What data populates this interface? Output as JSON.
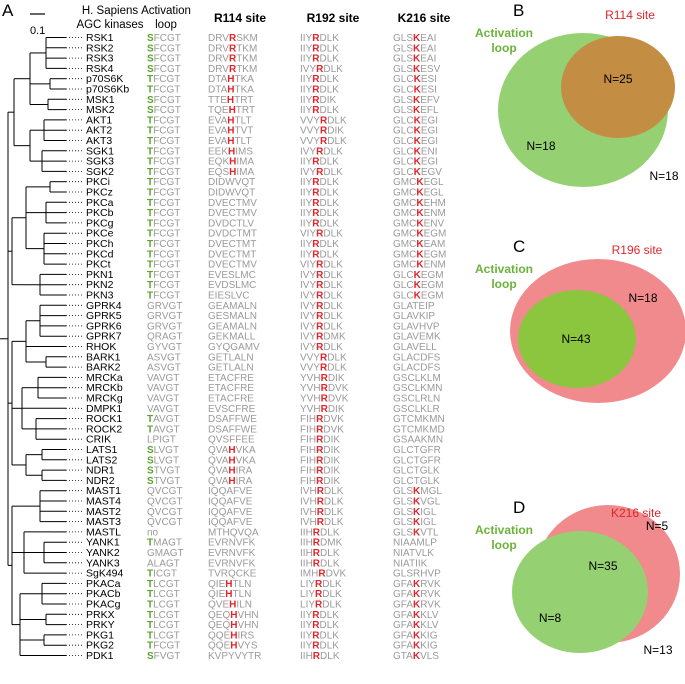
{
  "panel_a": {
    "label": "A",
    "scale_bar_label": "0.1",
    "headers": {
      "kinases": [
        "H. Sapiens",
        "AGC kinases"
      ],
      "activation": [
        "Activation",
        "loop"
      ],
      "r114": "R114 site",
      "r192": "R192 site",
      "k216": "K216 site"
    },
    "rows": [
      {
        "name": "RSK1",
        "act": "SFCGT",
        "r114": "DRVRSKM",
        "r192": "IIYRDLK",
        "k216": "GLSKEAI"
      },
      {
        "name": "RSK2",
        "act": "SFCGT",
        "r114": "DRVRTKM",
        "r192": "IIYRDLK",
        "k216": "GLSKEAI"
      },
      {
        "name": "RSK3",
        "act": "SFCGT",
        "r114": "DRVRTKM",
        "r192": "IIYRDLK",
        "k216": "GLSKEAI"
      },
      {
        "name": "RSK4",
        "act": "SFCGT",
        "r114": "DRVRTKM",
        "r192": "IVYRDLK",
        "k216": "GLSKESV"
      },
      {
        "name": "p70S6K",
        "act": "TFCGT",
        "r114": "DTAHTKA",
        "r192": "IIYRDLK",
        "k216": "GLCKESI"
      },
      {
        "name": "p70S6Kb",
        "act": "TFCGT",
        "r114": "DTAHTKA",
        "r192": "IIYRDLK",
        "k216": "GLCKESI"
      },
      {
        "name": "MSK1",
        "act": "SFCGT",
        "r114": "TTEHTRT",
        "r192": "IIYRDIK",
        "k216": "GLSKEFV"
      },
      {
        "name": "MSK2",
        "act": "SFCGT",
        "r114": "TQEHTRT",
        "r192": "IIYRDLK",
        "k216": "GLSKEFL"
      },
      {
        "name": "AKT1",
        "act": "TFCGT",
        "r114": "EVAHTLT",
        "r192": "VVYRDLK",
        "k216": "GLCKEGI"
      },
      {
        "name": "AKT2",
        "act": "TFCGT",
        "r114": "EVAHTVT",
        "r192": "VVYRDIK",
        "k216": "GLCKEGI"
      },
      {
        "name": "AKT3",
        "act": "TFCGT",
        "r114": "EVAHTLT",
        "r192": "VVYRDLK",
        "k216": "GLCKEGI"
      },
      {
        "name": "SGK1",
        "act": "TFCGT",
        "r114": "EEKHIMS",
        "r192": "IVYRDLK",
        "k216": "GLCKENI"
      },
      {
        "name": "SGK3",
        "act": "TFCGT",
        "r114": "EQKHIMA",
        "r192": "IIYRDLK",
        "k216": "GLCKEGI"
      },
      {
        "name": "SGK2",
        "act": "TFCGT",
        "r114": "EQSHIMA",
        "r192": "IVYRDLK",
        "k216": "GLCKEGV"
      },
      {
        "name": "PKCi",
        "act": "TFCGT",
        "r114": "DIDWVQT",
        "r192": "IIYRDLK",
        "k216": "GMCKEGL"
      },
      {
        "name": "PKCz",
        "act": "TFCGT",
        "r114": "DIDWVQT",
        "r192": "IIYRDLK",
        "k216": "GMCKEGL"
      },
      {
        "name": "PKCa",
        "act": "TFCGT",
        "r114": "DVECTMV",
        "r192": "IIYRDLK",
        "k216": "GMCKEHM"
      },
      {
        "name": "PKCb",
        "act": "TFCGT",
        "r114": "DVECTMV",
        "r192": "IIYRDLK",
        "k216": "GMCKENM"
      },
      {
        "name": "PKCg",
        "act": "TFCGT",
        "r114": "DVDCTLV",
        "r192": "IIYRDLK",
        "k216": "GMCKENV"
      },
      {
        "name": "PKCe",
        "act": "TFCGT",
        "r114": "DVDCTMT",
        "r192": "VIYRDLK",
        "k216": "GMCKEGM"
      },
      {
        "name": "PKCh",
        "act": "TFCGT",
        "r114": "DVECTMT",
        "r192": "IIYRDLK",
        "k216": "GMCKEAM"
      },
      {
        "name": "PKCd",
        "act": "TFCGT",
        "r114": "DVECTMT",
        "r192": "IIYRDLK",
        "k216": "GMCKEGM"
      },
      {
        "name": "PKCt",
        "act": "TFCGT",
        "r114": "DVECTMV",
        "r192": "VIYRDLK",
        "k216": "GMCKENM"
      },
      {
        "name": "PKN1",
        "act": "TFCGT",
        "r114": "EVESLMC",
        "r192": "IVYRDLK",
        "k216": "GLCKEGM"
      },
      {
        "name": "PKN2",
        "act": "TFCGT",
        "r114": "EVDSLMC",
        "r192": "IVYRDLK",
        "k216": "GLCKEGM"
      },
      {
        "name": "PKN3",
        "act": "TFCGT",
        "r114": "EIESLVC",
        "r192": "IVYRDLK",
        "k216": "GLCKEGM"
      },
      {
        "name": "GPRK4",
        "act": "GRVGT",
        "r114": "GEAMALN",
        "r192": "IVYRDLK",
        "k216": "GLATEIP"
      },
      {
        "name": "GPRK5",
        "act": "GRVGT",
        "r114": "GESMALN",
        "r192": "IVYRDLK",
        "k216": "GLAVKIP"
      },
      {
        "name": "GPRK6",
        "act": "GRVGT",
        "r114": "GEAMALN",
        "r192": "IVYRDLK",
        "k216": "GLAVHVP"
      },
      {
        "name": "GPRK7",
        "act": "QRAGT",
        "r114": "GEKMALL",
        "r192": "IVYRDMK",
        "k216": "GLAVEMK"
      },
      {
        "name": "RHOK",
        "act": "GYVGT",
        "r114": "GYQGAMV",
        "r192": "IVYRDLK",
        "k216": "GLAVELL"
      },
      {
        "name": "BARK1",
        "act": "ASVGT",
        "r114": "GETLALN",
        "r192": "VVYRDLK",
        "k216": "GLACDFS"
      },
      {
        "name": "BARK2",
        "act": "ASVGT",
        "r114": "GETLALN",
        "r192": "VVYRDLK",
        "k216": "GLACDFS"
      },
      {
        "name": "MRCKa",
        "act": "VAVGT",
        "r114": "ETACFRE",
        "r192": "YVHRDIK",
        "k216": "GSCLKLM"
      },
      {
        "name": "MRCKb",
        "act": "VAVGT",
        "r114": "ETACFRE",
        "r192": "YVHRDVK",
        "k216": "GSCLKMN"
      },
      {
        "name": "MRCKg",
        "act": "VAVGT",
        "r114": "ETACFRE",
        "r192": "YVHRDVK",
        "k216": "GSCLRLN"
      },
      {
        "name": "DMPK1",
        "act": "VAVGT",
        "r114": "EVSCFRE",
        "r192": "YVHRDIK",
        "k216": "GSCLKLR"
      },
      {
        "name": "ROCK1",
        "act": "TAVGT",
        "r114": "DSAFFWE",
        "r192": "FIHRDVK",
        "k216": "GTCMKMN"
      },
      {
        "name": "ROCK2",
        "act": "TAVGT",
        "r114": "DSAFFWE",
        "r192": "FIHRDVK",
        "k216": "GTCMKMD"
      },
      {
        "name": "CRIK",
        "act": "LPIGT",
        "r114": "QVSFFEE",
        "r192": "FIHRDIK",
        "k216": "GSAAKMN"
      },
      {
        "name": "LATS1",
        "act": "SLVGT",
        "r114": "QVAHVKA",
        "r192": "FIHRDIK",
        "k216": "GLCTGFR"
      },
      {
        "name": "LATS2",
        "act": "SLVGT",
        "r114": "QVAHVKA",
        "r192": "FIHRDIK",
        "k216": "GLCTGFR"
      },
      {
        "name": "NDR1",
        "act": "STVGT",
        "r114": "QVAHIRA",
        "r192": "FIHRDIK",
        "k216": "GLCTGLK"
      },
      {
        "name": "NDR2",
        "act": "STVGT",
        "r114": "QVAHIRA",
        "r192": "FIHRDIK",
        "k216": "GLCTGLK"
      },
      {
        "name": "MAST1",
        "act": "QVCGT",
        "r114": "IQQAFVE",
        "r192": "IVHRDLK",
        "k216": "GLSKMGL"
      },
      {
        "name": "MAST4",
        "act": "QVCGT",
        "r114": "IQQAFVE",
        "r192": "IVHRDLK",
        "k216": "GLSKVGL"
      },
      {
        "name": "MAST2",
        "act": "QVCGT",
        "r114": "IQQAFVE",
        "r192": "IVHRDLK",
        "k216": "GLSKIGL"
      },
      {
        "name": "MAST3",
        "act": "QVCGT",
        "r114": "IQQAFVE",
        "r192": "IVHRDLK",
        "k216": "GLSKIGL"
      },
      {
        "name": "MASTL",
        "act": "no",
        "r114": "MTHQVQA",
        "r192": "IIHRDLK",
        "k216": "GLSKVTL"
      },
      {
        "name": "YANK1",
        "act": "TMAGT",
        "r114": "EVRNVFK",
        "r192": "IIHRDMK",
        "k216": "NIAAMLP"
      },
      {
        "name": "YANK2",
        "act": "GMAGT",
        "r114": "EVRNVFK",
        "r192": "IIHRDLK",
        "k216": "NIATVLK"
      },
      {
        "name": "YANK3",
        "act": "ALAGT",
        "r114": "EVRNVFK",
        "r192": "IIHRDLK",
        "k216": "NIATIIK"
      },
      {
        "name": "SgK494",
        "act": "TICGT",
        "r114": "TVRQCKE",
        "r192": "IMHRDVK",
        "k216": "GLSRHVP"
      },
      {
        "name": "PKACa",
        "act": "TLCGT",
        "r114": "QIEHTLN",
        "r192": "LIYRDLK",
        "k216": "GFAKRVK"
      },
      {
        "name": "PKACb",
        "act": "TLCGT",
        "r114": "QIEHTLN",
        "r192": "LIYRDLK",
        "k216": "GFAKRVK"
      },
      {
        "name": "PKACg",
        "act": "TLCGT",
        "r114": "QVEHILN",
        "r192": "LIYRDLK",
        "k216": "GFAKRVK"
      },
      {
        "name": "PRKX",
        "act": "TLCGT",
        "r114": "QEQHVHN",
        "r192": "IIYRDLK",
        "k216": "GFAKKLV"
      },
      {
        "name": "PRKY",
        "act": "TLCGT",
        "r114": "QEQHVHN",
        "r192": "IIYRDLK",
        "k216": "GFAKKLV"
      },
      {
        "name": "PKG1",
        "act": "TLCGT",
        "r114": "QQEHIRS",
        "r192": "IIYRDLK",
        "k216": "GFAKKIG"
      },
      {
        "name": "PKG2",
        "act": "TFCGT",
        "r114": "QQEHVYS",
        "r192": "IIYRDLK",
        "k216": "GFAKKIG"
      },
      {
        "name": "PDK1",
        "act": "SFVGT",
        "r114": "KVPYVYTR",
        "r192": "IIHRDLK",
        "k216": "GTAKVLS"
      }
    ]
  },
  "panel_b": {
    "label": "B",
    "site": "R114 site",
    "loop": [
      "Activation",
      "loop"
    ],
    "n_overlap": "N=25",
    "n_activation_only": "N=18",
    "n_outside": "N=18"
  },
  "panel_c": {
    "label": "C",
    "site": "R196 site",
    "loop": [
      "Activation",
      "loop"
    ],
    "n_overlap": "N=43",
    "n_site_only": "N=18"
  },
  "panel_d": {
    "label": "D",
    "site": "K216 site",
    "loop": [
      "Activation",
      "loop"
    ],
    "n_overlap": "N=35",
    "n_site_only": "N=5",
    "n_activation_only": "N=8",
    "n_outside": "N=13"
  },
  "colors": {
    "green": "#5aa52a",
    "red": "#e0262a",
    "grey": "#9a9a9a",
    "venn_green": "#8fcf6e",
    "venn_red": "#f2868a",
    "venn_overlap": "#c08a3a"
  }
}
